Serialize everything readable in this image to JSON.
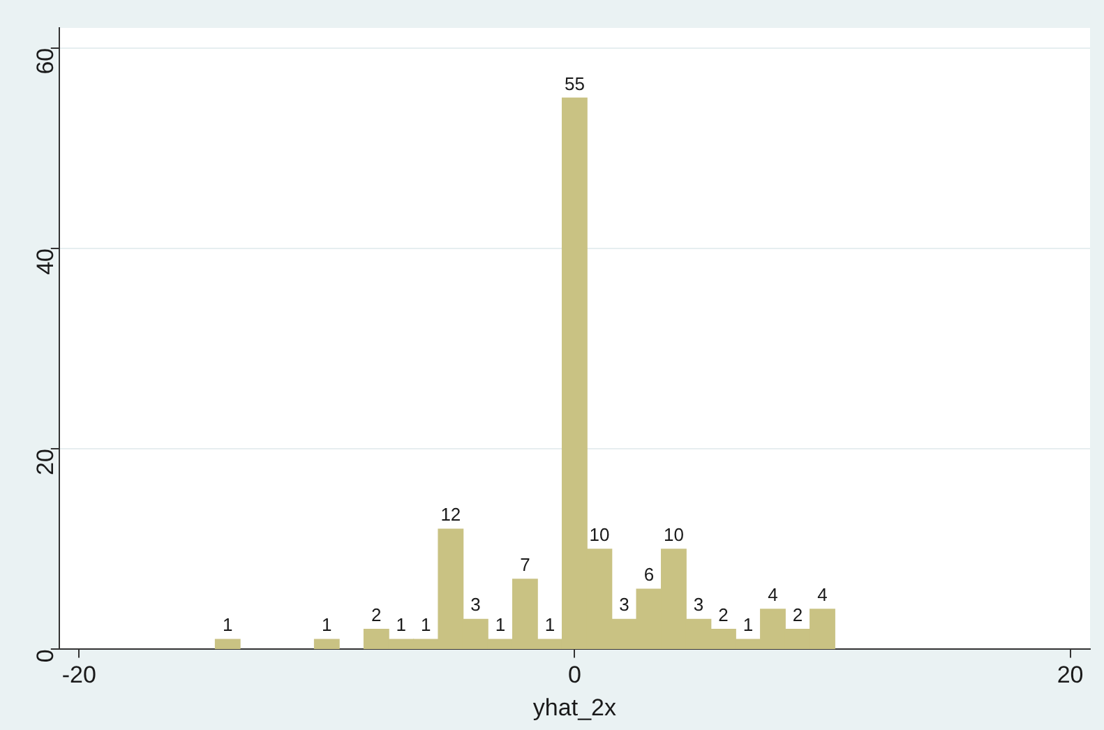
{
  "chart_data": {
    "type": "histogram",
    "xlabel": "yhat_2x",
    "bins": [
      -14.5,
      -13.5,
      -12.5,
      -11.5,
      -10.5,
      -9.5,
      -8.5,
      -7.5,
      -6.5,
      -5.5,
      -4.5,
      -3.5,
      -2.5,
      -1.5,
      -0.5,
      0.5,
      1.5,
      2.5,
      3.5,
      4.5,
      5.5,
      6.5,
      7.5,
      8.5,
      9.5,
      10.5
    ],
    "values": [
      1,
      0,
      0,
      0,
      1,
      0,
      2,
      1,
      1,
      12,
      3,
      1,
      7,
      1,
      55,
      10,
      3,
      6,
      10,
      3,
      2,
      1,
      4,
      2,
      4
    ],
    "value_labels": [
      "1",
      null,
      null,
      null,
      "1",
      null,
      "2",
      "1",
      "1",
      "12",
      "3",
      "1",
      "7",
      "1",
      "55",
      "10",
      "3",
      "6",
      "10",
      "3",
      "2",
      "1",
      "4",
      "2",
      "4"
    ],
    "color": "#c9c283",
    "xlim": [
      -20.8,
      20.8
    ],
    "xticks": [
      -20,
      0,
      20
    ],
    "ylim": [
      0,
      62
    ],
    "yticks": [
      0,
      20,
      40,
      60
    ],
    "grid": "y"
  }
}
